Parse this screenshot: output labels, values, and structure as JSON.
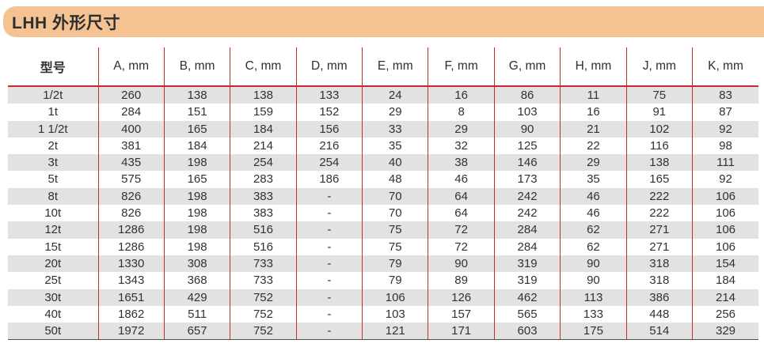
{
  "title": "LHH 外形尺寸",
  "colors": {
    "title_bar_background": "#F5C392",
    "title_text": "#2e2e30",
    "table_line_red": "#C62A2F",
    "row_stripe_gray": "#E2E2E2",
    "table_bottom_border": "#515153",
    "cell_text": "#323235"
  },
  "table": {
    "columns": [
      "型号",
      "A, mm",
      "B, mm",
      "C, mm",
      "D, mm",
      "E, mm",
      "F, mm",
      "G, mm",
      "H, mm",
      "J, mm",
      "K, mm"
    ],
    "rows": [
      [
        "1/2t",
        "260",
        "138",
        "138",
        "133",
        "24",
        "16",
        "86",
        "11",
        "75",
        "83"
      ],
      [
        "1t",
        "284",
        "151",
        "159",
        "152",
        "29",
        "8",
        "103",
        "16",
        "91",
        "87"
      ],
      [
        "1 1/2t",
        "400",
        "165",
        "184",
        "156",
        "33",
        "29",
        "90",
        "21",
        "102",
        "92"
      ],
      [
        "2t",
        "381",
        "184",
        "214",
        "216",
        "35",
        "32",
        "125",
        "22",
        "116",
        "98"
      ],
      [
        "3t",
        "435",
        "198",
        "254",
        "254",
        "40",
        "38",
        "146",
        "29",
        "138",
        "111"
      ],
      [
        "5t",
        "575",
        "165",
        "283",
        "186",
        "48",
        "46",
        "173",
        "35",
        "165",
        "92"
      ],
      [
        "8t",
        "826",
        "198",
        "383",
        "-",
        "70",
        "64",
        "242",
        "46",
        "222",
        "106"
      ],
      [
        "10t",
        "826",
        "198",
        "383",
        "-",
        "70",
        "64",
        "242",
        "46",
        "222",
        "106"
      ],
      [
        "12t",
        "1286",
        "198",
        "516",
        "-",
        "75",
        "72",
        "284",
        "62",
        "271",
        "106"
      ],
      [
        "15t",
        "1286",
        "198",
        "516",
        "-",
        "75",
        "72",
        "284",
        "62",
        "271",
        "106"
      ],
      [
        "20t",
        "1330",
        "308",
        "733",
        "-",
        "79",
        "90",
        "319",
        "90",
        "318",
        "154"
      ],
      [
        "25t",
        "1343",
        "368",
        "733",
        "-",
        "79",
        "89",
        "319",
        "90",
        "318",
        "184"
      ],
      [
        "30t",
        "1651",
        "429",
        "752",
        "-",
        "106",
        "126",
        "462",
        "113",
        "386",
        "214"
      ],
      [
        "40t",
        "1862",
        "511",
        "752",
        "-",
        "103",
        "157",
        "565",
        "133",
        "448",
        "256"
      ],
      [
        "50t",
        "1972",
        "657",
        "752",
        "-",
        "121",
        "171",
        "603",
        "175",
        "514",
        "329"
      ]
    ]
  }
}
